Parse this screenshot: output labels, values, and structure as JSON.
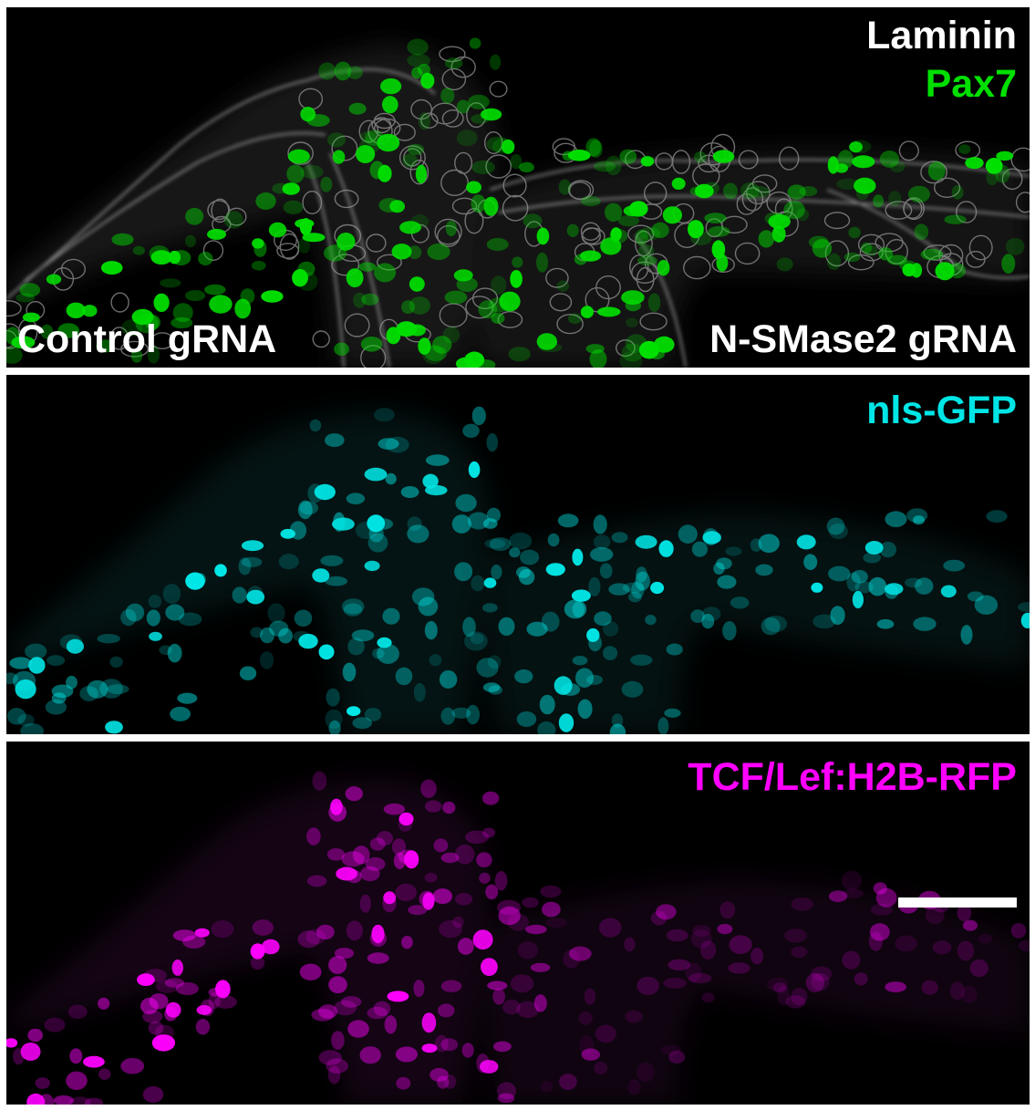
{
  "panels": [
    {
      "id": "top",
      "channel_labels": [
        {
          "text": "Laminin",
          "color": "#ffffff"
        },
        {
          "text": "Pax7",
          "color": "#00e000"
        }
      ],
      "condition_labels": [
        {
          "text": "Control gRNA",
          "position": "bottom-left"
        },
        {
          "text": "N-SMase2 gRNA",
          "position": "bottom-right"
        }
      ]
    },
    {
      "id": "middle",
      "channel_labels": [
        {
          "text": "nls-GFP",
          "color": "#00e5e5"
        }
      ]
    },
    {
      "id": "bottom",
      "channel_labels": [
        {
          "text": "TCF/Lef:H2B-RFP",
          "color": "#ff00ff"
        }
      ],
      "scale_bar": true
    }
  ],
  "colors": {
    "background": "#000000",
    "border": "#ffffff",
    "laminin": "#ffffff",
    "pax7": "#00e000",
    "gfp": "#00e5e5",
    "rfp": "#ff00ff"
  }
}
